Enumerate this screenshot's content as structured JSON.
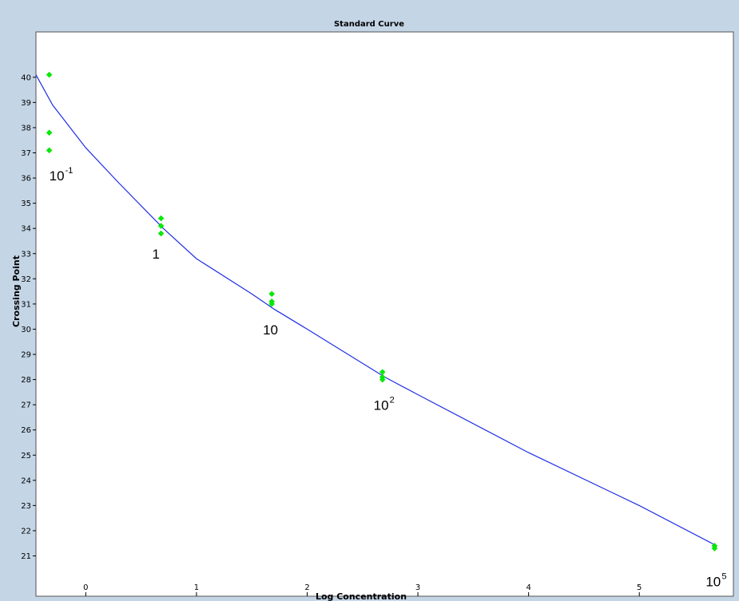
{
  "chart_data": {
    "type": "scatter",
    "title": "Standard Curve",
    "xlabel": "Log Concentration",
    "ylabel": "Crossing Point",
    "xlim": [
      -0.45,
      5.85
    ],
    "ylim": [
      19.4,
      41.8
    ],
    "x_ticks": [
      0,
      1,
      2,
      3,
      4,
      5
    ],
    "y_ticks": [
      21,
      22,
      23,
      24,
      25,
      26,
      27,
      28,
      29,
      30,
      31,
      32,
      33,
      34,
      35,
      36,
      37,
      38,
      39,
      40
    ],
    "grid": false,
    "colors": {
      "points": "#00ee00",
      "curve": "#1f2ee6",
      "background": "#c4d5e6",
      "plot_area": "#ffffff"
    },
    "points": [
      {
        "x": -0.33,
        "y": 40.1
      },
      {
        "x": -0.33,
        "y": 37.8
      },
      {
        "x": -0.33,
        "y": 37.1
      },
      {
        "x": 0.68,
        "y": 34.4
      },
      {
        "x": 0.68,
        "y": 34.1
      },
      {
        "x": 0.68,
        "y": 33.8
      },
      {
        "x": 1.68,
        "y": 31.4
      },
      {
        "x": 1.68,
        "y": 31.1
      },
      {
        "x": 1.68,
        "y": 31.0
      },
      {
        "x": 2.68,
        "y": 28.3
      },
      {
        "x": 2.68,
        "y": 28.1
      },
      {
        "x": 2.68,
        "y": 28.0
      },
      {
        "x": 5.68,
        "y": 21.4
      },
      {
        "x": 5.68,
        "y": 21.3
      }
    ],
    "fit_curve": {
      "x": [
        -0.45,
        -0.3,
        0.0,
        0.3,
        0.7,
        1.0,
        1.5,
        1.7,
        2.0,
        2.7,
        3.0,
        4.0,
        5.0,
        5.7
      ],
      "y": [
        40.1,
        38.9,
        37.2,
        35.8,
        34.0,
        32.8,
        31.4,
        30.8,
        30.0,
        28.1,
        27.4,
        25.1,
        23.0,
        21.4
      ]
    },
    "annotations": [
      {
        "base": "10",
        "sup": "-1",
        "x": -0.33,
        "y": 35.9
      },
      {
        "base": "1",
        "sup": "",
        "x": 0.6,
        "y": 32.8
      },
      {
        "base": "10",
        "sup": "",
        "x": 1.6,
        "y": 29.8
      },
      {
        "base": "10",
        "sup": "2",
        "x": 2.6,
        "y": 26.8
      },
      {
        "base": "10",
        "sup": "5",
        "x": 5.6,
        "y": 19.8
      }
    ]
  }
}
